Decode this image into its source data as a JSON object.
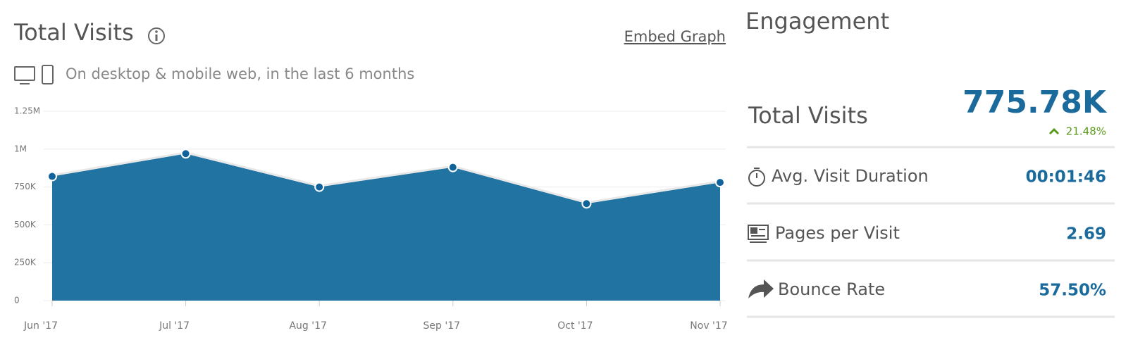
{
  "header": {
    "title": "Total Visits",
    "embed": "Embed Graph",
    "subtitle": "On desktop & mobile web, in the last 6 months"
  },
  "chart_data": {
    "type": "area",
    "categories": [
      "Jun '17",
      "Jul '17",
      "Aug '17",
      "Sep '17",
      "Oct '17",
      "Nov '17"
    ],
    "values": [
      820000,
      970000,
      750000,
      880000,
      640000,
      780000
    ],
    "color": "#2173a1",
    "ylim": [
      0,
      1250000
    ],
    "yticks": [
      0,
      {
        "value": 250000,
        "label": "250K"
      },
      {
        "value": 500000,
        "label": "500K"
      },
      {
        "value": 750000,
        "label": "750K"
      },
      {
        "value": 1000000,
        "label": "1M"
      },
      {
        "value": 1250000,
        "label": "1.25M"
      }
    ],
    "grid": true
  },
  "engagement": {
    "title": "Engagement",
    "total": {
      "label": "Total Visits",
      "value": "775.78K",
      "change": "21.48%"
    },
    "rows": [
      {
        "label": "Avg. Visit Duration",
        "value": "00:01:46"
      },
      {
        "label": "Pages per Visit",
        "value": "2.69"
      },
      {
        "label": "Bounce Rate",
        "value": "57.50%"
      }
    ]
  }
}
